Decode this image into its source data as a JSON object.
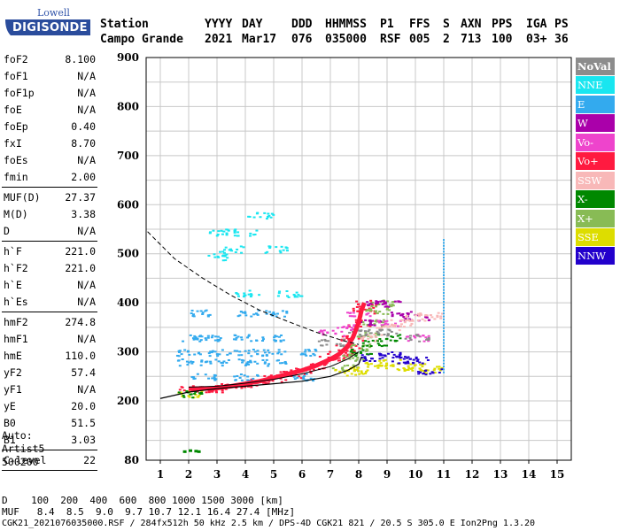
{
  "logo": {
    "top": "Lowell",
    "main": "DIGISONDE"
  },
  "header": {
    "labels": [
      "Station",
      "YYYY",
      "DAY",
      "DDD",
      "HHMMSS",
      "P1",
      "FFS",
      "S",
      "AXN",
      "PPS",
      "IGA",
      "PS"
    ],
    "values": [
      "Campo Grande",
      "2021",
      "Mar17",
      "076",
      "035000",
      "RSF",
      "005",
      "2",
      "713",
      "100",
      "03+",
      "36"
    ]
  },
  "params": {
    "group1": [
      {
        "k": "foF2",
        "v": "8.100"
      },
      {
        "k": "foF1",
        "v": "N/A"
      },
      {
        "k": "foF1p",
        "v": "N/A"
      },
      {
        "k": "foE",
        "v": "N/A"
      },
      {
        "k": "foEp",
        "v": "0.40"
      },
      {
        "k": "fxI",
        "v": "8.70"
      },
      {
        "k": "foEs",
        "v": "N/A"
      },
      {
        "k": "fmin",
        "v": "2.00"
      }
    ],
    "group2": [
      {
        "k": "MUF(D)",
        "v": "27.37"
      },
      {
        "k": "M(D)",
        "v": "3.38"
      },
      {
        "k": "D",
        "v": "N/A"
      }
    ],
    "group3": [
      {
        "k": "h`F",
        "v": "221.0"
      },
      {
        "k": "h`F2",
        "v": "221.0"
      },
      {
        "k": "h`E",
        "v": "N/A"
      },
      {
        "k": "h`Es",
        "v": "N/A"
      }
    ],
    "group4": [
      {
        "k": "hmF2",
        "v": "274.8"
      },
      {
        "k": "hmF1",
        "v": "N/A"
      },
      {
        "k": "hmE",
        "v": "110.0"
      },
      {
        "k": "yF2",
        "v": "57.4"
      },
      {
        "k": "yF1",
        "v": "N/A"
      },
      {
        "k": "yE",
        "v": "20.0"
      },
      {
        "k": "B0",
        "v": "51.5"
      },
      {
        "k": "B1",
        "v": "3.03"
      }
    ],
    "group5": [
      {
        "k": "C-level",
        "v": "22"
      }
    ]
  },
  "auto": {
    "line1": "Auto:",
    "line2": "Artist5",
    "line3": "500200"
  },
  "legend": [
    {
      "label": "NoVal",
      "color": "#8c8c8c"
    },
    {
      "label": "NNE",
      "color": "#19e6f0"
    },
    {
      "label": "E",
      "color": "#33aaee"
    },
    {
      "label": "W",
      "color": "#aa00aa"
    },
    {
      "label": "Vo-",
      "color": "#ee44cc"
    },
    {
      "label": "Vo+",
      "color": "#ff1a40"
    },
    {
      "label": "SSW",
      "color": "#f8b8b8"
    },
    {
      "label": "X-",
      "color": "#008800"
    },
    {
      "label": "X+",
      "color": "#88bb55"
    },
    {
      "label": "SSE",
      "color": "#dddd00"
    },
    {
      "label": "NNW",
      "color": "#2200cc"
    }
  ],
  "footer": {
    "line1": "D    100  200  400  600  800 1000 1500 3000 [km]",
    "line2": "MUF   8.4  8.5  9.0  9.7 10.7 12.1 16.4 27.4 [MHz]",
    "line3": "CGK21_2021076035000.RSF / 284fx512h 50 kHz 2.5 km / DPS-4D CGK21 821 / 20.5 S 305.0 E Ion2Png 1.3.20"
  },
  "chart_data": {
    "type": "scatter",
    "title": "",
    "xlabel": "",
    "ylabel": "",
    "xlim": [
      0.5,
      15.5
    ],
    "ylim": [
      80,
      900
    ],
    "x_ticks": [
      1,
      2,
      3,
      4,
      5,
      6,
      7,
      8,
      9,
      10,
      11,
      12,
      13,
      14,
      15
    ],
    "y_ticks": [
      80,
      200,
      300,
      400,
      500,
      600,
      700,
      800,
      900
    ],
    "grid": true,
    "legend_position": "right",
    "series": [
      {
        "name": "Vo+",
        "color": "#ff1a40",
        "points": [
          [
            2.0,
            225
          ],
          [
            2.5,
            225
          ],
          [
            3.0,
            226
          ],
          [
            3.5,
            230
          ],
          [
            4.0,
            235
          ],
          [
            4.5,
            240
          ],
          [
            5.0,
            247
          ],
          [
            5.5,
            255
          ],
          [
            6.0,
            262
          ],
          [
            6.5,
            272
          ],
          [
            7.0,
            285
          ],
          [
            7.3,
            295
          ],
          [
            7.6,
            310
          ],
          [
            7.8,
            330
          ],
          [
            8.0,
            360
          ],
          [
            8.1,
            385
          ],
          [
            8.2,
            400
          ]
        ]
      },
      {
        "name": "X+",
        "color": "#88bb55",
        "points": [
          [
            7.5,
            270
          ],
          [
            7.8,
            290
          ],
          [
            8.0,
            310
          ],
          [
            8.2,
            335
          ],
          [
            8.4,
            360
          ],
          [
            8.6,
            385
          ],
          [
            8.8,
            400
          ]
        ]
      },
      {
        "name": "E",
        "color": "#33aaee",
        "points": [
          [
            2.0,
            330
          ],
          [
            3.0,
            330
          ],
          [
            4.0,
            330
          ],
          [
            5.0,
            330
          ],
          [
            2.0,
            300
          ],
          [
            3.0,
            300
          ],
          [
            4.0,
            300
          ],
          [
            5.0,
            300
          ],
          [
            6.0,
            300
          ],
          [
            2.0,
            280
          ],
          [
            3.0,
            280
          ],
          [
            4.0,
            280
          ],
          [
            5.0,
            280
          ],
          [
            2.5,
            380
          ],
          [
            4.0,
            380
          ],
          [
            5.0,
            380
          ],
          [
            2.5,
            250
          ],
          [
            4.0,
            250
          ],
          [
            6.0,
            250
          ]
        ]
      },
      {
        "name": "NNE",
        "color": "#19e6f0",
        "points": [
          [
            3.0,
            545
          ],
          [
            4.0,
            545
          ],
          [
            3.5,
            510
          ],
          [
            5.0,
            510
          ],
          [
            4.0,
            420
          ],
          [
            5.5,
            420
          ],
          [
            3.0,
            495
          ],
          [
            4.5,
            580
          ]
        ]
      },
      {
        "name": "SSE",
        "color": "#dddd00",
        "points": [
          [
            7.5,
            265
          ],
          [
            8.0,
            260
          ],
          [
            8.5,
            275
          ],
          [
            9.0,
            280
          ],
          [
            9.5,
            270
          ],
          [
            10.0,
            270
          ],
          [
            10.5,
            265
          ],
          [
            2.0,
            215
          ]
        ]
      },
      {
        "name": "NNW",
        "color": "#2200cc",
        "points": [
          [
            8.5,
            290
          ],
          [
            9.0,
            295
          ],
          [
            9.5,
            285
          ],
          [
            10.0,
            285
          ],
          [
            10.5,
            260
          ]
        ]
      },
      {
        "name": "W",
        "color": "#aa00aa",
        "points": [
          [
            8.3,
            360
          ],
          [
            8.6,
            400
          ],
          [
            9.0,
            400
          ],
          [
            9.5,
            380
          ],
          [
            10.0,
            370
          ]
        ]
      },
      {
        "name": "Vo-",
        "color": "#ee44cc",
        "points": [
          [
            7.0,
            340
          ],
          [
            7.5,
            350
          ],
          [
            8.0,
            380
          ],
          [
            9.0,
            360
          ],
          [
            10.0,
            330
          ]
        ]
      },
      {
        "name": "SSW",
        "color": "#f8b8b8",
        "points": [
          [
            8.5,
            330
          ],
          [
            9.0,
            350
          ],
          [
            9.5,
            360
          ],
          [
            10.0,
            370
          ],
          [
            10.5,
            375
          ]
        ]
      },
      {
        "name": "X-",
        "color": "#008800",
        "points": [
          [
            8.0,
            300
          ],
          [
            8.5,
            320
          ],
          [
            9.0,
            330
          ],
          [
            2.0,
            215
          ]
        ]
      },
      {
        "name": "NoVal",
        "color": "#8c8c8c",
        "points": [
          [
            7.0,
            320
          ],
          [
            8.0,
            340
          ],
          [
            9.0,
            340
          ],
          [
            10.0,
            330
          ]
        ]
      }
    ]
  }
}
